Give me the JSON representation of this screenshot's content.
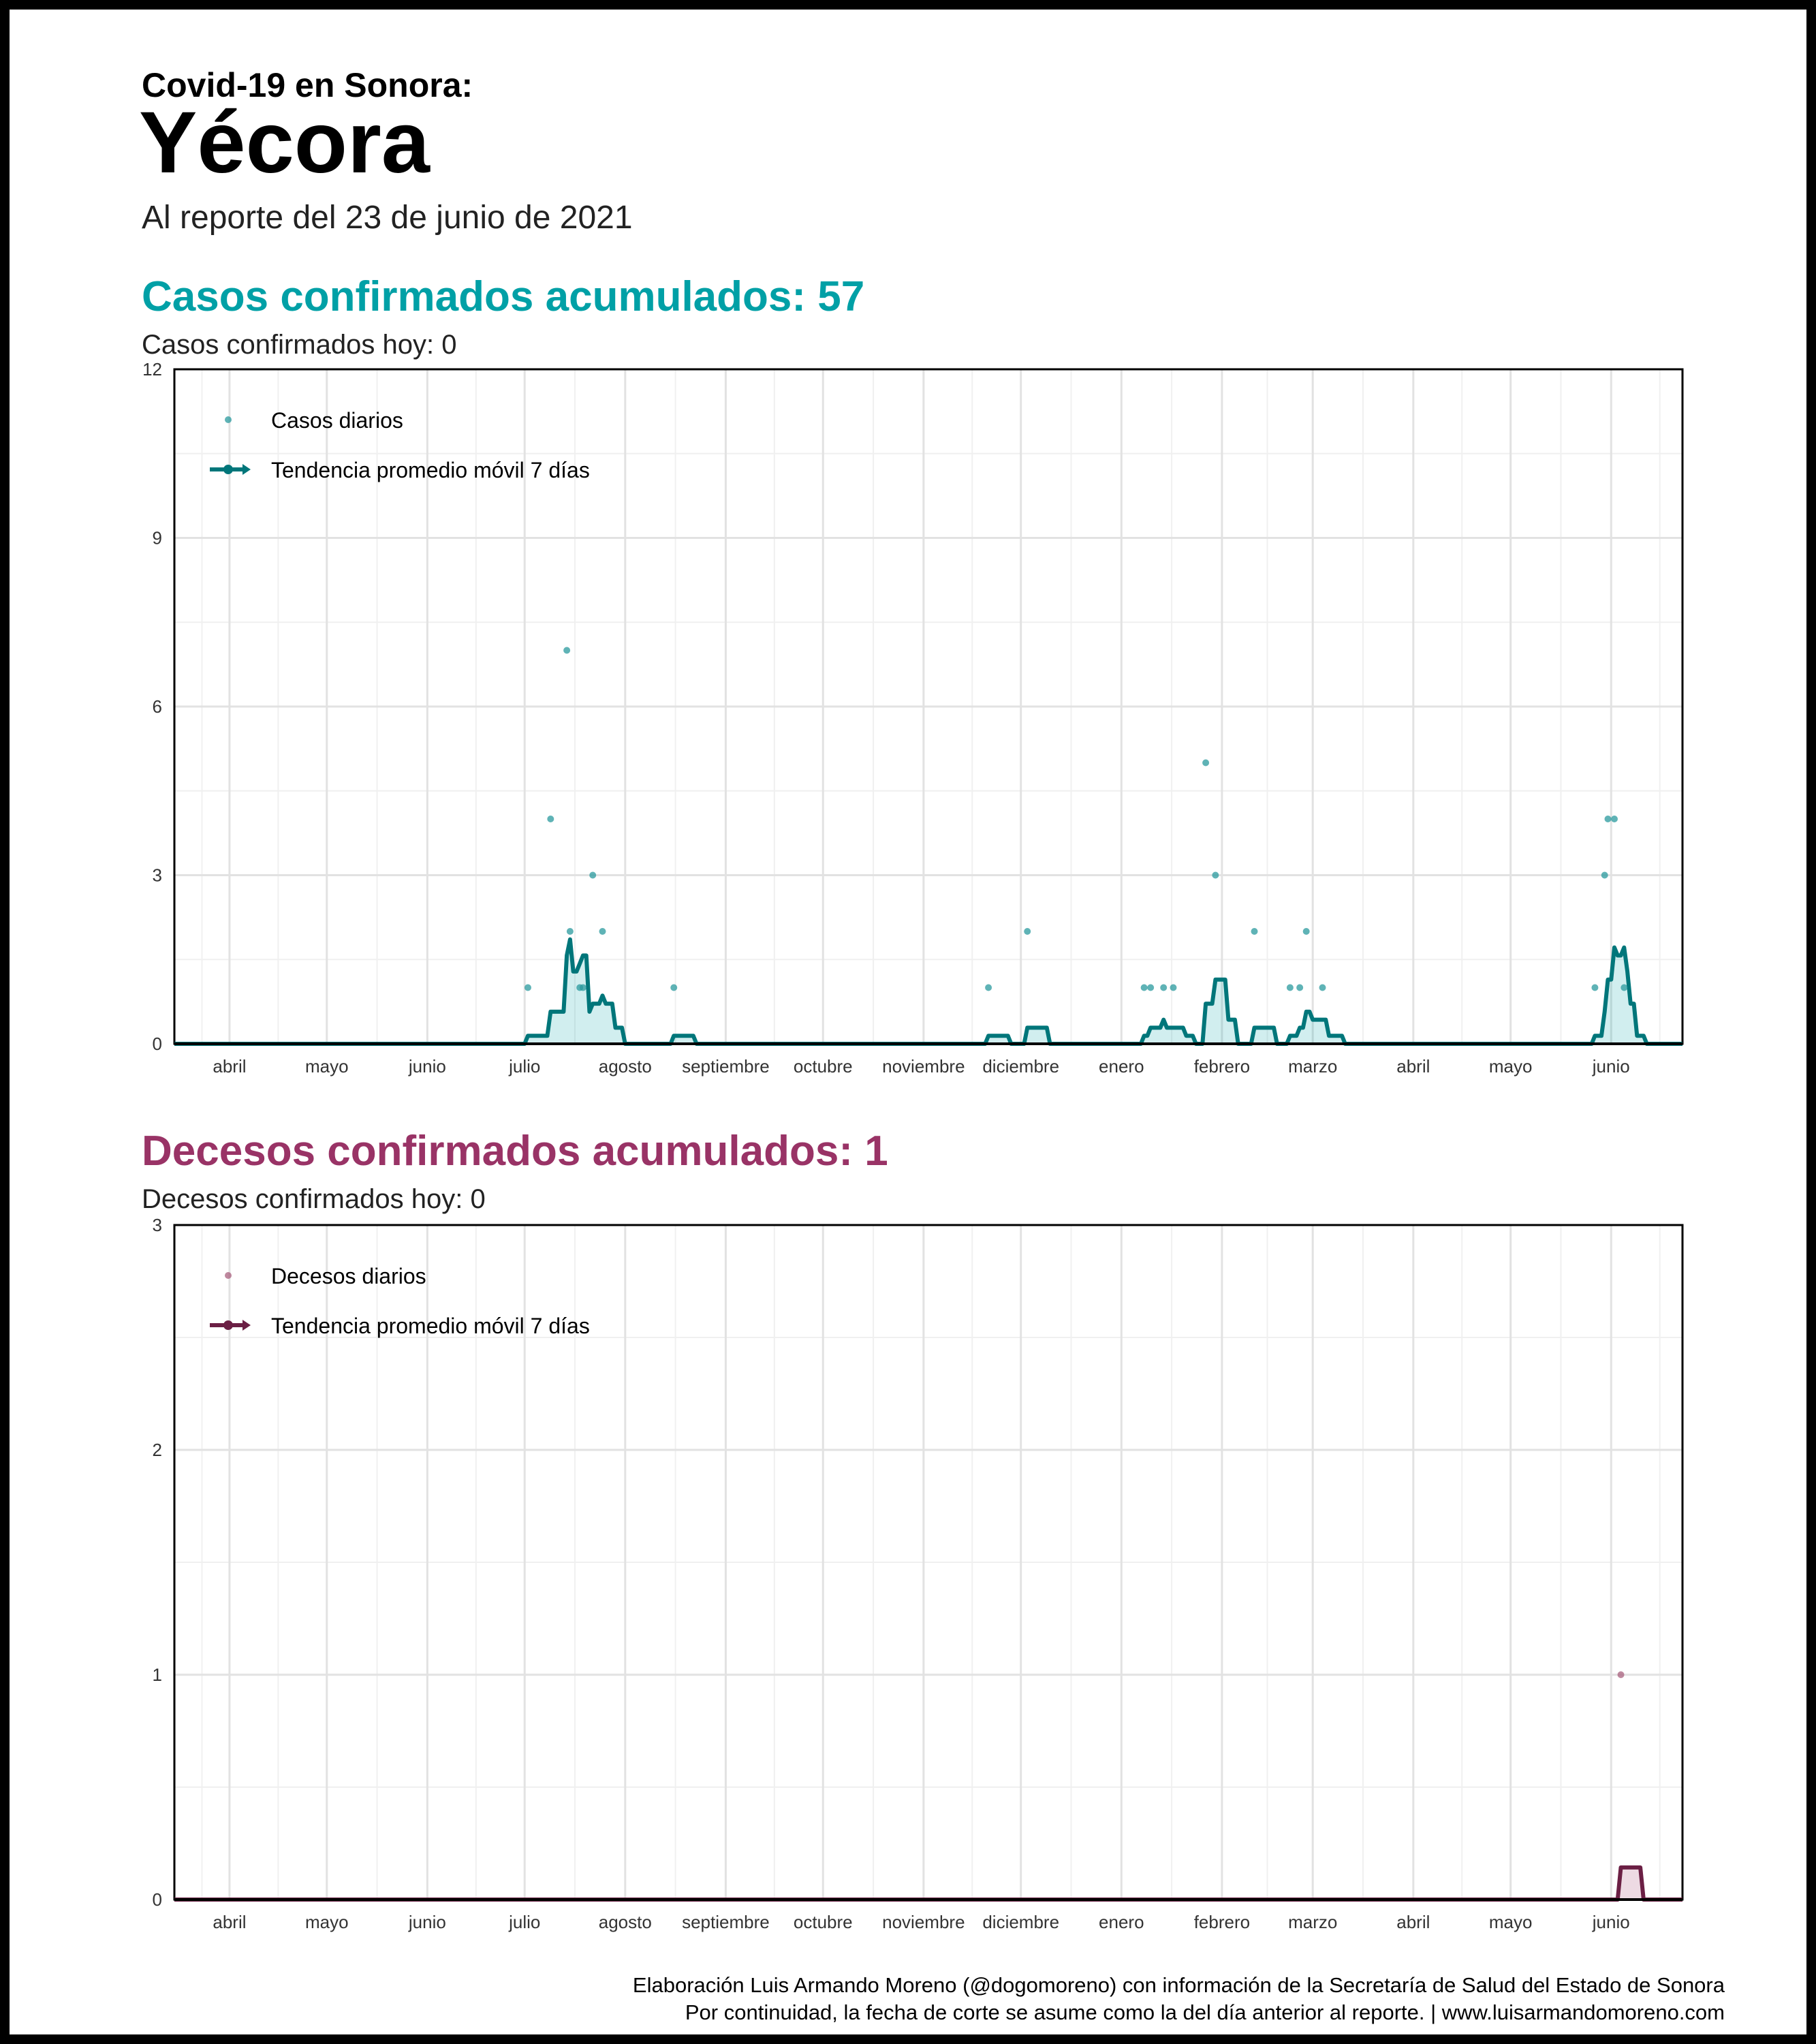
{
  "header": {
    "kicker": "Covid-19 en Sonora:",
    "title": "Yécora",
    "subtitle": "Al reporte del 23 de junio de 2021"
  },
  "cases": {
    "heading": "Casos confirmados acumulados: 57",
    "today": "Casos confirmados hoy: 0",
    "color": "#00a0a6",
    "line_color": "#00767a"
  },
  "deaths": {
    "heading": "Decesos confirmados acumulados: 1",
    "today": "Decesos confirmados hoy: 0",
    "color": "#993366",
    "line_color": "#6b1f44"
  },
  "caption": {
    "line1": "Elaboración Luis Armando Moreno (@dogomoreno) con información de la Secretaría de Salud del Estado de Sonora",
    "line2": "Por continuidad, la fecha de corte se asume como la del día anterior al reporte. | www.luisarmandomoreno.com"
  },
  "chart_data": [
    {
      "type": "line",
      "x_start": "2020-03-15",
      "x_end": "2021-06-23",
      "ylim": [
        0,
        12
      ],
      "yticks": [
        0,
        3,
        6,
        9,
        12
      ],
      "month_ticks": [
        {
          "date": "2020-04-01",
          "label": "abril"
        },
        {
          "date": "2020-05-01",
          "label": "mayo"
        },
        {
          "date": "2020-06-01",
          "label": "junio"
        },
        {
          "date": "2020-07-01",
          "label": "julio"
        },
        {
          "date": "2020-08-01",
          "label": "agosto"
        },
        {
          "date": "2020-09-01",
          "label": "septiembre"
        },
        {
          "date": "2020-10-01",
          "label": "octubre"
        },
        {
          "date": "2020-11-01",
          "label": "noviembre"
        },
        {
          "date": "2020-12-01",
          "label": "diciembre"
        },
        {
          "date": "2021-01-01",
          "label": "enero"
        },
        {
          "date": "2021-02-01",
          "label": "febrero"
        },
        {
          "date": "2021-03-01",
          "label": "marzo"
        },
        {
          "date": "2021-04-01",
          "label": "abril"
        },
        {
          "date": "2021-05-01",
          "label": "mayo"
        },
        {
          "date": "2021-06-01",
          "label": "junio"
        }
      ],
      "legend": {
        "points": "Casos diarios",
        "line": "Tendencia promedio móvil 7 días",
        "position": "top-left"
      },
      "grid": true,
      "daily_points": [
        {
          "date": "2020-07-02",
          "value": 1
        },
        {
          "date": "2020-07-09",
          "value": 4
        },
        {
          "date": "2020-07-14",
          "value": 7
        },
        {
          "date": "2020-07-15",
          "value": 2
        },
        {
          "date": "2020-07-18",
          "value": 1
        },
        {
          "date": "2020-07-19",
          "value": 1
        },
        {
          "date": "2020-07-22",
          "value": 3
        },
        {
          "date": "2020-07-25",
          "value": 2
        },
        {
          "date": "2020-08-16",
          "value": 1
        },
        {
          "date": "2020-11-21",
          "value": 1
        },
        {
          "date": "2020-12-03",
          "value": 2
        },
        {
          "date": "2021-01-08",
          "value": 1
        },
        {
          "date": "2021-01-10",
          "value": 1
        },
        {
          "date": "2021-01-14",
          "value": 1
        },
        {
          "date": "2021-01-17",
          "value": 1
        },
        {
          "date": "2021-01-27",
          "value": 5
        },
        {
          "date": "2021-01-30",
          "value": 3
        },
        {
          "date": "2021-02-11",
          "value": 2
        },
        {
          "date": "2021-02-22",
          "value": 1
        },
        {
          "date": "2021-02-25",
          "value": 1
        },
        {
          "date": "2021-02-27",
          "value": 2
        },
        {
          "date": "2021-03-04",
          "value": 1
        },
        {
          "date": "2021-05-27",
          "value": 1
        },
        {
          "date": "2021-05-30",
          "value": 3
        },
        {
          "date": "2021-05-31",
          "value": 4
        },
        {
          "date": "2021-06-02",
          "value": 4
        },
        {
          "date": "2021-06-05",
          "value": 1
        }
      ],
      "rolling_window_days": 7
    },
    {
      "type": "line",
      "x_start": "2020-03-15",
      "x_end": "2021-06-23",
      "ylim": [
        0,
        3
      ],
      "yticks": [
        0,
        1,
        2,
        3
      ],
      "month_ticks": [
        {
          "date": "2020-04-01",
          "label": "abril"
        },
        {
          "date": "2020-05-01",
          "label": "mayo"
        },
        {
          "date": "2020-06-01",
          "label": "junio"
        },
        {
          "date": "2020-07-01",
          "label": "julio"
        },
        {
          "date": "2020-08-01",
          "label": "agosto"
        },
        {
          "date": "2020-09-01",
          "label": "septiembre"
        },
        {
          "date": "2020-10-01",
          "label": "octubre"
        },
        {
          "date": "2020-11-01",
          "label": "noviembre"
        },
        {
          "date": "2020-12-01",
          "label": "diciembre"
        },
        {
          "date": "2021-01-01",
          "label": "enero"
        },
        {
          "date": "2021-02-01",
          "label": "febrero"
        },
        {
          "date": "2021-03-01",
          "label": "marzo"
        },
        {
          "date": "2021-04-01",
          "label": "abril"
        },
        {
          "date": "2021-05-01",
          "label": "mayo"
        },
        {
          "date": "2021-06-01",
          "label": "junio"
        }
      ],
      "legend": {
        "points": "Decesos diarios",
        "line": "Tendencia promedio móvil 7 días",
        "position": "top-left"
      },
      "grid": true,
      "daily_points": [
        {
          "date": "2021-06-04",
          "value": 1
        }
      ],
      "rolling_window_days": 7
    }
  ]
}
